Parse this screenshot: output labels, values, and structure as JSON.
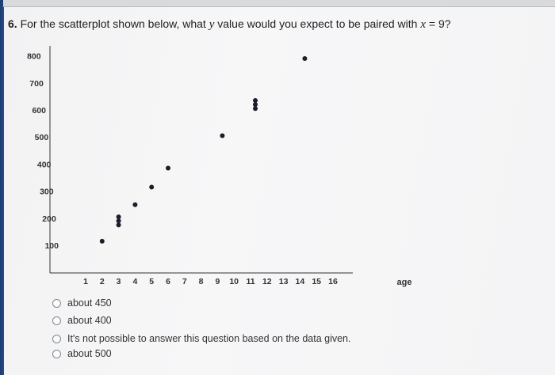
{
  "question": {
    "number": "6.",
    "text_before": "For the scatterplot shown below, what",
    "var_y": "y",
    "text_middle": "value would you expect to be paired with",
    "var_x": "x",
    "text_after": "= 9?"
  },
  "chart_data": {
    "type": "scatter",
    "title": "",
    "xlabel": "age",
    "ylabel": "",
    "x_ticks": [
      "1",
      "2",
      "3",
      "4",
      "5",
      "6",
      "7",
      "8",
      "9",
      "10",
      "11",
      "12",
      "13",
      "14",
      "15",
      "16"
    ],
    "y_ticks": [
      "100",
      "200",
      "300",
      "400",
      "500",
      "600",
      "700",
      "800"
    ],
    "xlim": [
      0,
      20
    ],
    "ylim": [
      0,
      800
    ],
    "grid": false,
    "points": [
      {
        "x": 2,
        "y": 115
      },
      {
        "x": 3,
        "y": 175
      },
      {
        "x": 3,
        "y": 190
      },
      {
        "x": 3,
        "y": 205
      },
      {
        "x": 4,
        "y": 250
      },
      {
        "x": 5,
        "y": 315
      },
      {
        "x": 6,
        "y": 385
      },
      {
        "x": 9,
        "y": 505
      },
      {
        "x": 11,
        "y": 605
      },
      {
        "x": 11,
        "y": 620
      },
      {
        "x": 11,
        "y": 635
      },
      {
        "x": 14,
        "y": 790
      }
    ]
  },
  "options": [
    {
      "label": "about 450"
    },
    {
      "label": "about 400"
    },
    {
      "label": "It's not possible to answer this question based on the data given."
    },
    {
      "label": "about 500"
    }
  ]
}
